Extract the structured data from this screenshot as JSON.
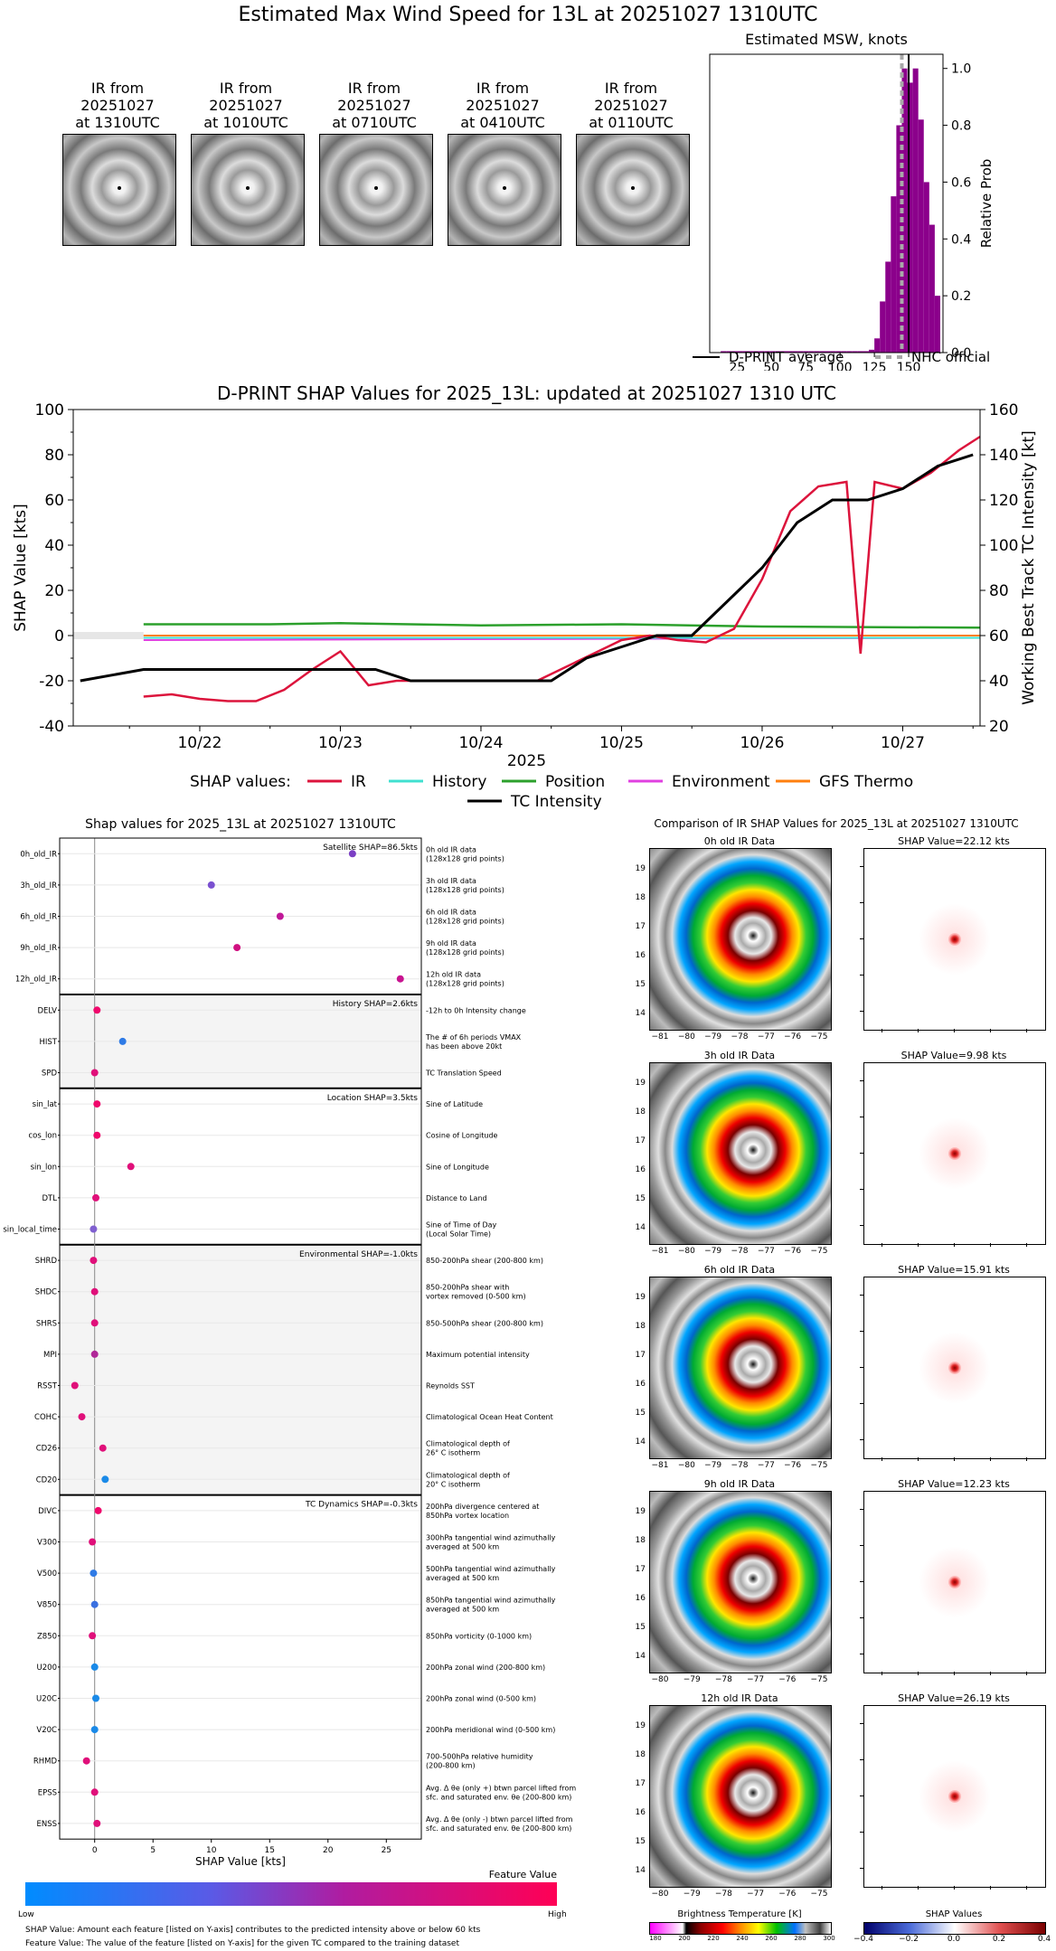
{
  "main_title": "Estimated Max Wind Speed for 13L at 20251027 1310UTC",
  "ir_panels": [
    {
      "line1": "IR from",
      "line2": "20251027",
      "line3": "at 1310UTC"
    },
    {
      "line1": "IR from",
      "line2": "20251027",
      "line3": "at 1010UTC"
    },
    {
      "line1": "IR from",
      "line2": "20251027",
      "line3": "at 0710UTC"
    },
    {
      "line1": "IR from",
      "line2": "20251027",
      "line3": "at 0410UTC"
    },
    {
      "line1": "IR from",
      "line2": "20251027",
      "line3": "at 0110UTC"
    }
  ],
  "chart_data": [
    {
      "type": "bar",
      "title": "Estimated MSW, knots",
      "ylabel": "Relative Prob",
      "xlim": [
        5,
        175
      ],
      "ylim": [
        0,
        1.05
      ],
      "x_ticks": [
        "25",
        "50",
        "75",
        "100",
        "125",
        "150"
      ],
      "y_ticks": [
        "0.0",
        "0.2",
        "0.4",
        "0.6",
        "0.8",
        "1.0"
      ],
      "bin_width": 4,
      "bins_x": [
        15,
        19,
        23,
        27,
        31,
        35,
        39,
        43,
        47,
        51,
        55,
        59,
        63,
        67,
        71,
        75,
        79,
        83,
        87,
        91,
        95,
        99,
        103,
        107,
        111,
        115,
        119,
        123,
        127,
        131,
        135,
        139,
        143,
        147,
        151,
        155,
        159,
        163,
        167,
        171
      ],
      "values": [
        0.005,
        0.005,
        0.005,
        0.005,
        0.005,
        0.005,
        0.005,
        0.005,
        0.005,
        0.005,
        0.005,
        0.005,
        0.005,
        0.005,
        0.005,
        0.005,
        0.005,
        0.005,
        0.005,
        0.005,
        0.005,
        0.005,
        0.005,
        0.005,
        0.005,
        0.005,
        0.005,
        0.01,
        0.05,
        0.18,
        0.32,
        0.55,
        0.8,
        1.0,
        0.95,
        1.0,
        0.82,
        0.6,
        0.45,
        0.2
      ],
      "dprint_average": 150,
      "nhc_official": 145,
      "legend": [
        {
          "name": "D-PRINT average"
        },
        {
          "name": "NHC official"
        }
      ],
      "colors": {
        "bars": "#8b008b",
        "dprint": "#000000",
        "nhc": "#a9a9a9"
      }
    },
    {
      "type": "line",
      "title": "D-PRINT SHAP Values for 2025_13L: updated at 20251027 1310 UTC",
      "xlabel": "2025",
      "ylabel": "SHAP Value [kts]",
      "ylabel_right": "Working Best Track TC Intensity [kt]",
      "x_ticks": [
        "10/22",
        "10/23",
        "10/24",
        "10/25",
        "10/26",
        "10/27"
      ],
      "y_ticks": [
        "-40",
        "-20",
        "0",
        "20",
        "40",
        "60",
        "80",
        "100"
      ],
      "y2_ticks": [
        "20",
        "40",
        "60",
        "80",
        "100",
        "120",
        "140",
        "160"
      ],
      "ylim": [
        -40,
        100
      ],
      "y2lim": [
        20,
        160
      ],
      "xlim": [
        21.1,
        27.55
      ],
      "legend_title": "SHAP values:",
      "legend": [
        {
          "name": "IR",
          "color": "#dc143c"
        },
        {
          "name": "History",
          "color": "#40e0d0"
        },
        {
          "name": "Position",
          "color": "#2ca02c"
        },
        {
          "name": "Environment",
          "color": "#e040e0"
        },
        {
          "name": "GFS Thermo",
          "color": "#ff7f0e"
        },
        {
          "name": "TC Intensity",
          "color": "#000000"
        }
      ],
      "tc_intensity": {
        "x": [
          21.15,
          21.6,
          22.0,
          22.5,
          23.0,
          23.25,
          23.5,
          24.0,
          24.5,
          24.75,
          25.0,
          25.25,
          25.5,
          25.75,
          26.0,
          26.25,
          26.5,
          26.75,
          27.0,
          27.25,
          27.5
        ],
        "y": [
          40,
          45,
          45,
          45,
          45,
          45,
          40,
          40,
          40,
          50,
          55,
          60,
          60,
          75,
          90,
          110,
          120,
          120,
          125,
          135,
          140
        ]
      },
      "ir": {
        "x": [
          21.6,
          21.8,
          22.0,
          22.2,
          22.4,
          22.6,
          22.8,
          23.0,
          23.2,
          23.4,
          23.6,
          23.8,
          24.0,
          24.2,
          24.4,
          24.6,
          24.8,
          25.0,
          25.2,
          25.4,
          25.6,
          25.8,
          26.0,
          26.2,
          26.4,
          26.6,
          26.7,
          26.8,
          27.0,
          27.2,
          27.4,
          27.55
        ],
        "y": [
          -27,
          -26,
          -28,
          -29,
          -29,
          -24,
          -15,
          -7,
          -22,
          -20,
          -20,
          -20,
          -20,
          -20,
          -20,
          -14,
          -8,
          -2,
          0,
          -2,
          -3,
          3,
          25,
          55,
          66,
          68,
          -8,
          68,
          65,
          72,
          82,
          88
        ]
      },
      "history": {
        "x": [
          21.6,
          27.55
        ],
        "y": [
          -1,
          -1
        ]
      },
      "position": {
        "x": [
          21.6,
          22.5,
          23.0,
          24.0,
          25.0,
          26.0,
          27.55
        ],
        "y": [
          5,
          5,
          5.5,
          4.5,
          5,
          4,
          3.5
        ]
      },
      "environment": {
        "x": [
          21.6,
          27.55
        ],
        "y": [
          -2,
          -1
        ]
      },
      "gfs_thermo": {
        "x": [
          21.6,
          27.55
        ],
        "y": [
          0,
          0
        ]
      }
    },
    {
      "type": "scatter",
      "title": "Shap values for 2025_13L at 20251027 1310UTC",
      "xlabel": "SHAP Value [kts]",
      "xlim": [
        -3,
        28
      ],
      "x_ticks": [
        "0",
        "5",
        "10",
        "15",
        "20",
        "25"
      ],
      "groups": [
        {
          "label": "Satellite SHAP=86.5kts",
          "start": 0,
          "count": 5,
          "shaded": false
        },
        {
          "label": "History SHAP=2.6kts",
          "start": 5,
          "count": 3,
          "shaded": true
        },
        {
          "label": "Location SHAP=3.5kts",
          "start": 8,
          "count": 5,
          "shaded": false
        },
        {
          "label": "Environmental SHAP=-1.0kts",
          "start": 13,
          "count": 8,
          "shaded": true
        },
        {
          "label": "TC Dynamics SHAP=-0.3kts",
          "start": 21,
          "count": 11,
          "shaded": false
        }
      ],
      "features": [
        {
          "name": "0h_old_IR",
          "desc1": "0h old IR data",
          "desc2": "(128x128 grid points)",
          "value": 22.1,
          "color": "#7b3fc4"
        },
        {
          "name": "3h_old_IR",
          "desc1": "3h old IR data",
          "desc2": "(128x128 grid points)",
          "value": 10.0,
          "color": "#7a50d0"
        },
        {
          "name": "6h_old_IR",
          "desc1": "6h old IR data",
          "desc2": "(128x128 grid points)",
          "value": 15.9,
          "color": "#c01898"
        },
        {
          "name": "9h_old_IR",
          "desc1": "9h old IR data",
          "desc2": "(128x128 grid points)",
          "value": 12.2,
          "color": "#d01080"
        },
        {
          "name": "12h_old_IR",
          "desc1": "12h old IR data",
          "desc2": "(128x128 grid points)",
          "value": 26.2,
          "color": "#c81490"
        },
        {
          "name": "DELV",
          "desc1": "-12h to 0h Intensity change",
          "desc2": "",
          "value": 0.2,
          "color": "#f0086c"
        },
        {
          "name": "HIST",
          "desc1": "The # of 6h periods VMAX",
          "desc2": "has been above 20kt",
          "value": 2.4,
          "color": "#2f7be6"
        },
        {
          "name": "SPD",
          "desc1": "TC Translation Speed",
          "desc2": "",
          "value": 0.0,
          "color": "#e0107a"
        },
        {
          "name": "sin_lat",
          "desc1": "Sine of Latitude",
          "desc2": "",
          "value": 0.2,
          "color": "#f0086c"
        },
        {
          "name": "cos_lon",
          "desc1": "Cosine of Longitude",
          "desc2": "",
          "value": 0.2,
          "color": "#f0086c"
        },
        {
          "name": "sin_lon",
          "desc1": "Sine of Longitude",
          "desc2": "",
          "value": 3.1,
          "color": "#e0107a"
        },
        {
          "name": "DTL",
          "desc1": "Distance to Land",
          "desc2": "",
          "value": 0.1,
          "color": "#e0107a"
        },
        {
          "name": "sin_local_time",
          "desc1": "Sine of Time of Day",
          "desc2": "(Local Solar Time)",
          "value": -0.1,
          "color": "#8060d0"
        },
        {
          "name": "SHRD",
          "desc1": "850-200hPa shear (200-800 km)",
          "desc2": "",
          "value": -0.1,
          "color": "#e0107a"
        },
        {
          "name": "SHDC",
          "desc1": "850-200hPa shear with",
          "desc2": "vortex removed (0-500 km)",
          "value": 0.0,
          "color": "#e0107a"
        },
        {
          "name": "SHRS",
          "desc1": "850-500hPa shear (200-800 km)",
          "desc2": "",
          "value": 0.0,
          "color": "#e0107a"
        },
        {
          "name": "MPI",
          "desc1": "Maximum potential intensity",
          "desc2": "",
          "value": 0.0,
          "color": "#b02898"
        },
        {
          "name": "RSST",
          "desc1": "Reynolds SST",
          "desc2": "",
          "value": -1.7,
          "color": "#e0107a"
        },
        {
          "name": "COHC",
          "desc1": "Climatological Ocean Heat Content",
          "desc2": "",
          "value": -1.1,
          "color": "#e0107a"
        },
        {
          "name": "CD26",
          "desc1": "Climatological depth of",
          "desc2": "26° C isotherm",
          "value": 0.7,
          "color": "#e0107a"
        },
        {
          "name": "CD20",
          "desc1": "Climatological depth of",
          "desc2": "20° C isotherm",
          "value": 0.9,
          "color": "#1a8ae8"
        },
        {
          "name": "DIVC",
          "desc1": "200hPa divergence centered at",
          "desc2": "850hPa vortex location",
          "value": 0.3,
          "color": "#f0086c"
        },
        {
          "name": "V300",
          "desc1": "300hPa tangential wind azimuthally",
          "desc2": "averaged at 500 km",
          "value": -0.2,
          "color": "#e0107a"
        },
        {
          "name": "V500",
          "desc1": "500hPa tangential wind azimuthally",
          "desc2": "averaged at 500 km",
          "value": -0.1,
          "color": "#2f7be6"
        },
        {
          "name": "V850",
          "desc1": "850hPa tangential wind azimuthally",
          "desc2": "averaged at 500 km",
          "value": 0.0,
          "color": "#3a70e0"
        },
        {
          "name": "Z850",
          "desc1": "850hPa vorticity (0-1000 km)",
          "desc2": "",
          "value": -0.2,
          "color": "#e0107a"
        },
        {
          "name": "U200",
          "desc1": "200hPa zonal wind (200-800 km)",
          "desc2": "",
          "value": 0.0,
          "color": "#1a8ae8"
        },
        {
          "name": "U20C",
          "desc1": "200hPa zonal wind (0-500 km)",
          "desc2": "",
          "value": 0.1,
          "color": "#1a8ae8"
        },
        {
          "name": "V20C",
          "desc1": "200hPa meridional wind (0-500 km)",
          "desc2": "",
          "value": 0.0,
          "color": "#1a8ae8"
        },
        {
          "name": "RHMD",
          "desc1": "700-500hPa relative humidity",
          "desc2": "(200-800 km)",
          "value": -0.7,
          "color": "#e0107a"
        },
        {
          "name": "EPSS",
          "desc1": "Avg. Δ θe (only +) btwn parcel lifted from",
          "desc2": "sfc. and saturated env. θe (200-800 km)",
          "value": 0.0,
          "color": "#e0107a"
        },
        {
          "name": "ENSS",
          "desc1": "Avg. Δ θe (only -) btwn parcel lifted from",
          "desc2": "sfc. and saturated env. θe (200-800 km)",
          "value": 0.2,
          "color": "#e0107a"
        }
      ]
    }
  ],
  "feature_value_bar": {
    "title": "Feature Value",
    "low": "Low",
    "high": "High"
  },
  "footnotes": {
    "line1": "SHAP Value: Amount each feature [listed on Y-axis] contributes to the predicted intensity above or below 60 kts",
    "line2": "Feature Value: The value of the feature [listed on Y-axis] for the given TC compared to the training dataset"
  },
  "comparison": {
    "title": "Comparison of IR SHAP Values for 2025_13L at 20251027 1310UTC",
    "rows": [
      {
        "ir_title": "0h old IR Data",
        "shap_title": "SHAP Value=22.12 kts",
        "xticks": [
          "−81",
          "−80",
          "−79",
          "−78",
          "−77",
          "−76",
          "−75"
        ]
      },
      {
        "ir_title": "3h old IR Data",
        "shap_title": "SHAP Value=9.98 kts",
        "xticks": [
          "−81",
          "−80",
          "−79",
          "−78",
          "−77",
          "−76",
          "−75"
        ]
      },
      {
        "ir_title": "6h old IR Data",
        "shap_title": "SHAP Value=15.91 kts",
        "xticks": [
          "−81",
          "−80",
          "−79",
          "−78",
          "−77",
          "−76",
          "−75"
        ]
      },
      {
        "ir_title": "9h old IR Data",
        "shap_title": "SHAP Value=12.23 kts",
        "xticks": [
          "−80",
          "−79",
          "−78",
          "−77",
          "−76",
          "−75"
        ]
      },
      {
        "ir_title": "12h old IR Data",
        "shap_title": "SHAP Value=26.19 kts",
        "xticks": [
          "−80",
          "−79",
          "−78",
          "−77",
          "−76",
          "−75"
        ]
      }
    ],
    "yticks": [
      "14",
      "15",
      "16",
      "17",
      "18",
      "19"
    ],
    "bt_colorbar": {
      "label": "Brightness Temperature [K]",
      "ticks": [
        "180",
        "200",
        "220",
        "240",
        "260",
        "280",
        "300"
      ]
    },
    "shap_colorbar": {
      "label": "SHAP Values",
      "ticks": [
        "−0.4",
        "−0.2",
        "0.0",
        "0.2",
        "0.4"
      ]
    }
  }
}
